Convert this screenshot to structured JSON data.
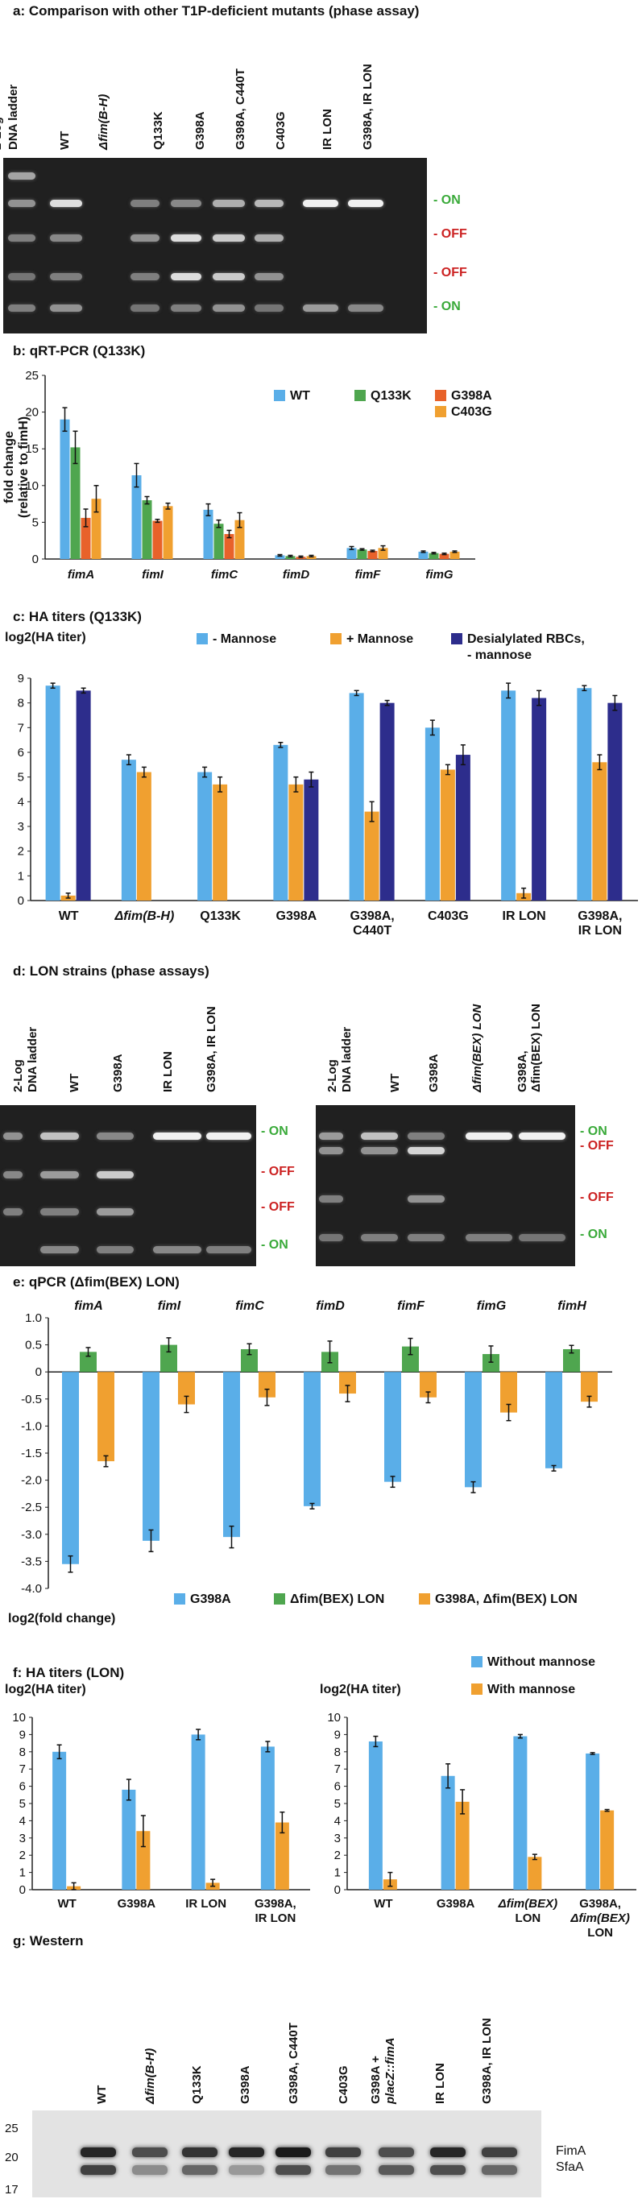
{
  "panel_a": {
    "title": "a: Comparison with other T1P-deficient mutants (phase assay)",
    "ladder": "2-Log DNA ladder",
    "lanes": [
      "WT",
      "Δfim(B-H)",
      "Q133K",
      "G398A",
      "G398A, C440T",
      "C403G",
      "IR LON",
      "G398A, IR LON"
    ],
    "band_labels": [
      "ON",
      "OFF",
      "OFF",
      "ON"
    ]
  },
  "panel_b": {
    "title": "b: qRT-PCR (Q133K)",
    "colors": {
      "WT": "#5aaee8",
      "Q133K": "#4fa64f",
      "G398A": "#e8622a",
      "C403G": "#f0a030"
    }
  },
  "panel_c": {
    "title": "c: HA titers (Q133K)",
    "colors": {
      "minus": "#5aaee8",
      "plus": "#f0a030",
      "desial": "#2d2d8c"
    }
  },
  "panel_d": {
    "title": "d: LON strains (phase assays)",
    "left": {
      "ladder": "2-Log DNA ladder",
      "lanes": [
        "WT",
        "G398A",
        "IR LON",
        "G398A, IR LON"
      ],
      "band_labels": [
        "ON",
        "OFF",
        "OFF",
        "ON"
      ]
    },
    "right": {
      "ladder": "2-Log DNA ladder",
      "lanes": [
        "WT",
        "G398A",
        "Δfim(BEX) LON",
        "G398A, Δfim(BEX) LON"
      ],
      "band_labels": [
        "ON",
        "OFF",
        "OFF",
        "ON"
      ]
    }
  },
  "panel_e": {
    "title": "e: qPCR (Δfim(BEX) LON)",
    "colors": {
      "G398A": "#5aaee8",
      "BEX": "#4fa64f",
      "G398A_BEX": "#f0a030"
    }
  },
  "panel_f": {
    "title": "f: HA titers (LON)",
    "colors": {
      "without": "#5aaee8",
      "with": "#f0a030"
    }
  },
  "panel_g": {
    "title": "g: Western",
    "lanes": [
      "WT",
      "Δfim(B-H)",
      "Q133K",
      "G398A",
      "G398A, C440T",
      "C403G",
      "G398A + placZ::fimA",
      "IR LON",
      "G398A, IR LON"
    ],
    "markers": [
      "25",
      "20",
      "17"
    ],
    "proteins": [
      "FimA",
      "SfaA"
    ]
  },
  "chart_data": [
    {
      "type": "bar",
      "title": "b: qRT-PCR (Q133K)",
      "ylabel": "fold change (relative to fimH)",
      "ylim": [
        0,
        25
      ],
      "yticks": [
        0,
        5,
        10,
        15,
        20,
        25
      ],
      "categories": [
        "fimA",
        "fimI",
        "fimC",
        "fimD",
        "fimF",
        "fimG"
      ],
      "series": [
        {
          "name": "WT",
          "values": [
            19.0,
            11.4,
            6.7,
            0.5,
            1.5,
            1.0
          ],
          "errors": [
            1.6,
            1.6,
            0.8,
            0.1,
            0.2,
            0.1
          ]
        },
        {
          "name": "Q133K",
          "values": [
            15.2,
            8.0,
            4.8,
            0.4,
            1.3,
            0.8
          ],
          "errors": [
            2.2,
            0.5,
            0.5,
            0.1,
            0.1,
            0.1
          ]
        },
        {
          "name": "G398A",
          "values": [
            5.6,
            5.2,
            3.4,
            0.3,
            1.1,
            0.7
          ],
          "errors": [
            1.2,
            0.2,
            0.5,
            0.1,
            0.1,
            0.1
          ]
        },
        {
          "name": "C403G",
          "values": [
            8.2,
            7.2,
            5.3,
            0.4,
            1.5,
            1.0
          ],
          "errors": [
            1.8,
            0.4,
            1.0,
            0.1,
            0.3,
            0.1
          ]
        }
      ]
    },
    {
      "type": "bar",
      "title": "c: HA titers (Q133K)",
      "ylabel": "log2(HA titer)",
      "ylim": [
        0,
        9
      ],
      "yticks": [
        0,
        1,
        2,
        3,
        4,
        5,
        6,
        7,
        8,
        9
      ],
      "categories": [
        "WT",
        "Δfim(B-H)",
        "Q133K",
        "G398A",
        "G398A, C440T",
        "C403G",
        "IR LON",
        "G398A, IR LON"
      ],
      "series": [
        {
          "name": "- Mannose",
          "values": [
            8.7,
            5.7,
            5.2,
            6.3,
            8.4,
            7.0,
            8.5,
            8.6
          ],
          "errors": [
            0.1,
            0.2,
            0.2,
            0.1,
            0.1,
            0.3,
            0.3,
            0.1
          ]
        },
        {
          "name": "+ Mannose",
          "values": [
            0.2,
            5.2,
            4.7,
            4.7,
            3.6,
            5.3,
            0.3,
            5.6
          ],
          "errors": [
            0.1,
            0.2,
            0.3,
            0.3,
            0.4,
            0.2,
            0.2,
            0.3
          ]
        },
        {
          "name": "Desialylated RBCs, - mannose",
          "values": [
            8.5,
            null,
            null,
            4.9,
            8.0,
            5.9,
            8.2,
            8.0
          ],
          "errors": [
            0.1,
            null,
            null,
            0.3,
            0.1,
            0.4,
            0.3,
            0.3
          ]
        }
      ]
    },
    {
      "type": "bar",
      "title": "e: qPCR (Δfim(BEX) LON)",
      "ylabel": "log2(fold change)",
      "ylim": [
        -4.0,
        1.0
      ],
      "yticks": [
        1.0,
        0.5,
        0,
        -0.5,
        -1.0,
        -1.5,
        -2.0,
        -2.5,
        -3.0,
        -3.5,
        -4.0
      ],
      "categories": [
        "fimA",
        "fimI",
        "fimC",
        "fimD",
        "fimF",
        "fimG",
        "fimH"
      ],
      "series": [
        {
          "name": "G398A",
          "values": [
            -3.55,
            -3.12,
            -3.05,
            -2.48,
            -2.03,
            -2.13,
            -1.78
          ],
          "errors": [
            0.15,
            0.2,
            0.2,
            0.05,
            0.1,
            0.1,
            0.05
          ]
        },
        {
          "name": "Δfim(BEX) LON",
          "values": [
            0.37,
            0.5,
            0.42,
            0.37,
            0.47,
            0.33,
            0.42
          ],
          "errors": [
            0.08,
            0.13,
            0.1,
            0.2,
            0.15,
            0.15,
            0.07
          ]
        },
        {
          "name": "G398A, Δfim(BEX) LON",
          "values": [
            -1.65,
            -0.6,
            -0.47,
            -0.4,
            -0.47,
            -0.75,
            -0.55
          ],
          "errors": [
            0.1,
            0.15,
            0.15,
            0.15,
            0.1,
            0.15,
            0.1
          ]
        }
      ]
    },
    {
      "type": "bar",
      "title": "f: HA titers (LON)",
      "ylabel": "log2(HA titer)",
      "ylim": [
        0,
        10
      ],
      "yticks": [
        0,
        1,
        2,
        3,
        4,
        5,
        6,
        7,
        8,
        9,
        10
      ],
      "categories": [
        "WT",
        "G398A",
        "IR LON",
        "G398A, IR LON"
      ],
      "series": [
        {
          "name": "Without mannose",
          "values": [
            8.0,
            5.8,
            9.0,
            8.3
          ],
          "errors": [
            0.4,
            0.6,
            0.3,
            0.3
          ]
        },
        {
          "name": "With mannose",
          "values": [
            0.2,
            3.4,
            0.4,
            3.9
          ],
          "errors": [
            0.2,
            0.9,
            0.2,
            0.6
          ]
        }
      ]
    },
    {
      "type": "bar",
      "title": "",
      "ylabel": "log2(HA titer)",
      "ylim": [
        0,
        10
      ],
      "yticks": [
        0,
        1,
        2,
        3,
        4,
        5,
        6,
        7,
        8,
        9,
        10
      ],
      "categories": [
        "WT",
        "G398A",
        "Δfim(BEX) LON",
        "G398A, Δfim(BEX) LON"
      ],
      "series": [
        {
          "name": "Without mannose",
          "values": [
            8.6,
            6.6,
            8.9,
            7.9
          ],
          "errors": [
            0.3,
            0.7,
            0.1,
            0.05
          ]
        },
        {
          "name": "With mannose",
          "values": [
            0.6,
            5.1,
            1.9,
            4.6
          ],
          "errors": [
            0.4,
            0.7,
            0.15,
            0.05
          ]
        }
      ]
    }
  ]
}
